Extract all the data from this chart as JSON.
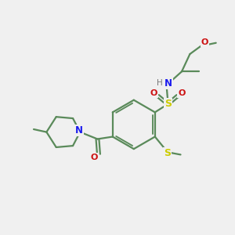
{
  "background_color": "#f0f0f0",
  "bond_color": "#5a8a5a",
  "atom_colors": {
    "N": "#1a1aee",
    "O": "#cc1111",
    "S": "#cccc00",
    "H": "#777777",
    "C": "#5a8a5a"
  },
  "figsize": [
    3.0,
    3.0
  ],
  "dpi": 100
}
